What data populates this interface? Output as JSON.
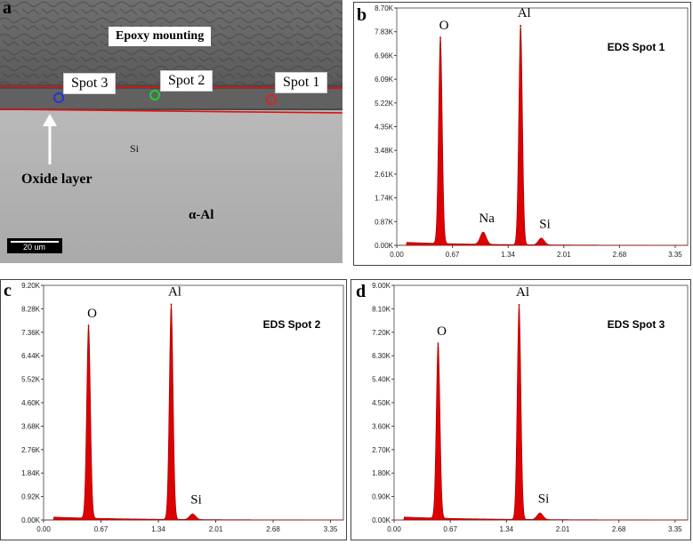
{
  "figure": {
    "panel_letters": [
      "a",
      "b",
      "c",
      "d"
    ]
  },
  "sem": {
    "epoxy_label": "Epoxy mounting",
    "spot_labels": [
      "Spot 3",
      "Spot 2",
      "Spot 1"
    ],
    "spot_colors": [
      "#2233dd",
      "#22cc33",
      "#dd2222"
    ],
    "si_label": "Si",
    "oxide_label": "Oxide layer",
    "alpha_label": "α-Al",
    "scale_bar_label": "20 um",
    "layer_line_color": "#e01010"
  },
  "chart_data": [
    {
      "panel": "b",
      "type": "line",
      "title": "EDS Spot 1",
      "xlabel": "",
      "ylabel": "",
      "xlim": [
        0.0,
        3.5
      ],
      "ylim": [
        0,
        8.7
      ],
      "x_ticks": [
        "0.00",
        "0.67",
        "1.34",
        "2.01",
        "2.68",
        "3.35"
      ],
      "x_tick_values": [
        0.0,
        0.67,
        1.34,
        2.01,
        2.68,
        3.35
      ],
      "y_ticks": [
        "0.00K",
        "0.87K",
        "1.74K",
        "2.61K",
        "3.48K",
        "4.35K",
        "5.22K",
        "6.09K",
        "6.96K",
        "7.83K",
        "8.70K"
      ],
      "y_tick_values": [
        0,
        0.87,
        1.74,
        2.61,
        3.48,
        4.35,
        5.22,
        6.09,
        6.96,
        7.83,
        8.7
      ],
      "peaks": [
        {
          "label": "O",
          "x": 0.525,
          "y": 7.6
        },
        {
          "label": "Na",
          "x": 1.04,
          "y": 0.45
        },
        {
          "label": "Al",
          "x": 1.49,
          "y": 8.05
        },
        {
          "label": "Si",
          "x": 1.74,
          "y": 0.25
        }
      ],
      "fill_color": "#dd0000"
    },
    {
      "panel": "c",
      "type": "line",
      "title": "EDS Spot 2",
      "xlabel": "",
      "ylabel": "",
      "xlim": [
        0.0,
        3.5
      ],
      "ylim": [
        0,
        9.2
      ],
      "x_ticks": [
        "0.00",
        "0.67",
        "1.34",
        "2.01",
        "2.68",
        "3.35"
      ],
      "x_tick_values": [
        0.0,
        0.67,
        1.34,
        2.01,
        2.68,
        3.35
      ],
      "y_ticks": [
        "0.00K",
        "0.92K",
        "1.84K",
        "2.76K",
        "3.68K",
        "4.60K",
        "5.52K",
        "6.44K",
        "7.36K",
        "8.28K",
        "9.20K"
      ],
      "y_tick_values": [
        0,
        0.92,
        1.84,
        2.76,
        3.68,
        4.6,
        5.52,
        6.44,
        7.36,
        8.28,
        9.2
      ],
      "peaks": [
        {
          "label": "O",
          "x": 0.525,
          "y": 7.6
        },
        {
          "label": "Al",
          "x": 1.49,
          "y": 8.45
        },
        {
          "label": "Si",
          "x": 1.74,
          "y": 0.22
        }
      ],
      "fill_color": "#dd0000"
    },
    {
      "panel": "d",
      "type": "line",
      "title": "EDS Spot 3",
      "xlabel": "",
      "ylabel": "",
      "xlim": [
        0.0,
        3.5
      ],
      "ylim": [
        0,
        9.0
      ],
      "x_ticks": [
        "0.00",
        "0.67",
        "1.34",
        "2.01",
        "2.68",
        "3.35"
      ],
      "x_tick_values": [
        0.0,
        0.67,
        1.34,
        2.01,
        2.68,
        3.35
      ],
      "y_ticks": [
        "0.00K",
        "0.90K",
        "1.80K",
        "2.70K",
        "3.60K",
        "4.50K",
        "5.40K",
        "6.30K",
        "7.20K",
        "8.10K",
        "9.00K"
      ],
      "y_tick_values": [
        0,
        0.9,
        1.8,
        2.7,
        3.6,
        4.5,
        5.4,
        6.3,
        7.2,
        8.1,
        9.0
      ],
      "peaks": [
        {
          "label": "O",
          "x": 0.525,
          "y": 6.75
        },
        {
          "label": "Al",
          "x": 1.49,
          "y": 8.25
        },
        {
          "label": "Si",
          "x": 1.74,
          "y": 0.25
        }
      ],
      "fill_color": "#dd0000"
    }
  ]
}
